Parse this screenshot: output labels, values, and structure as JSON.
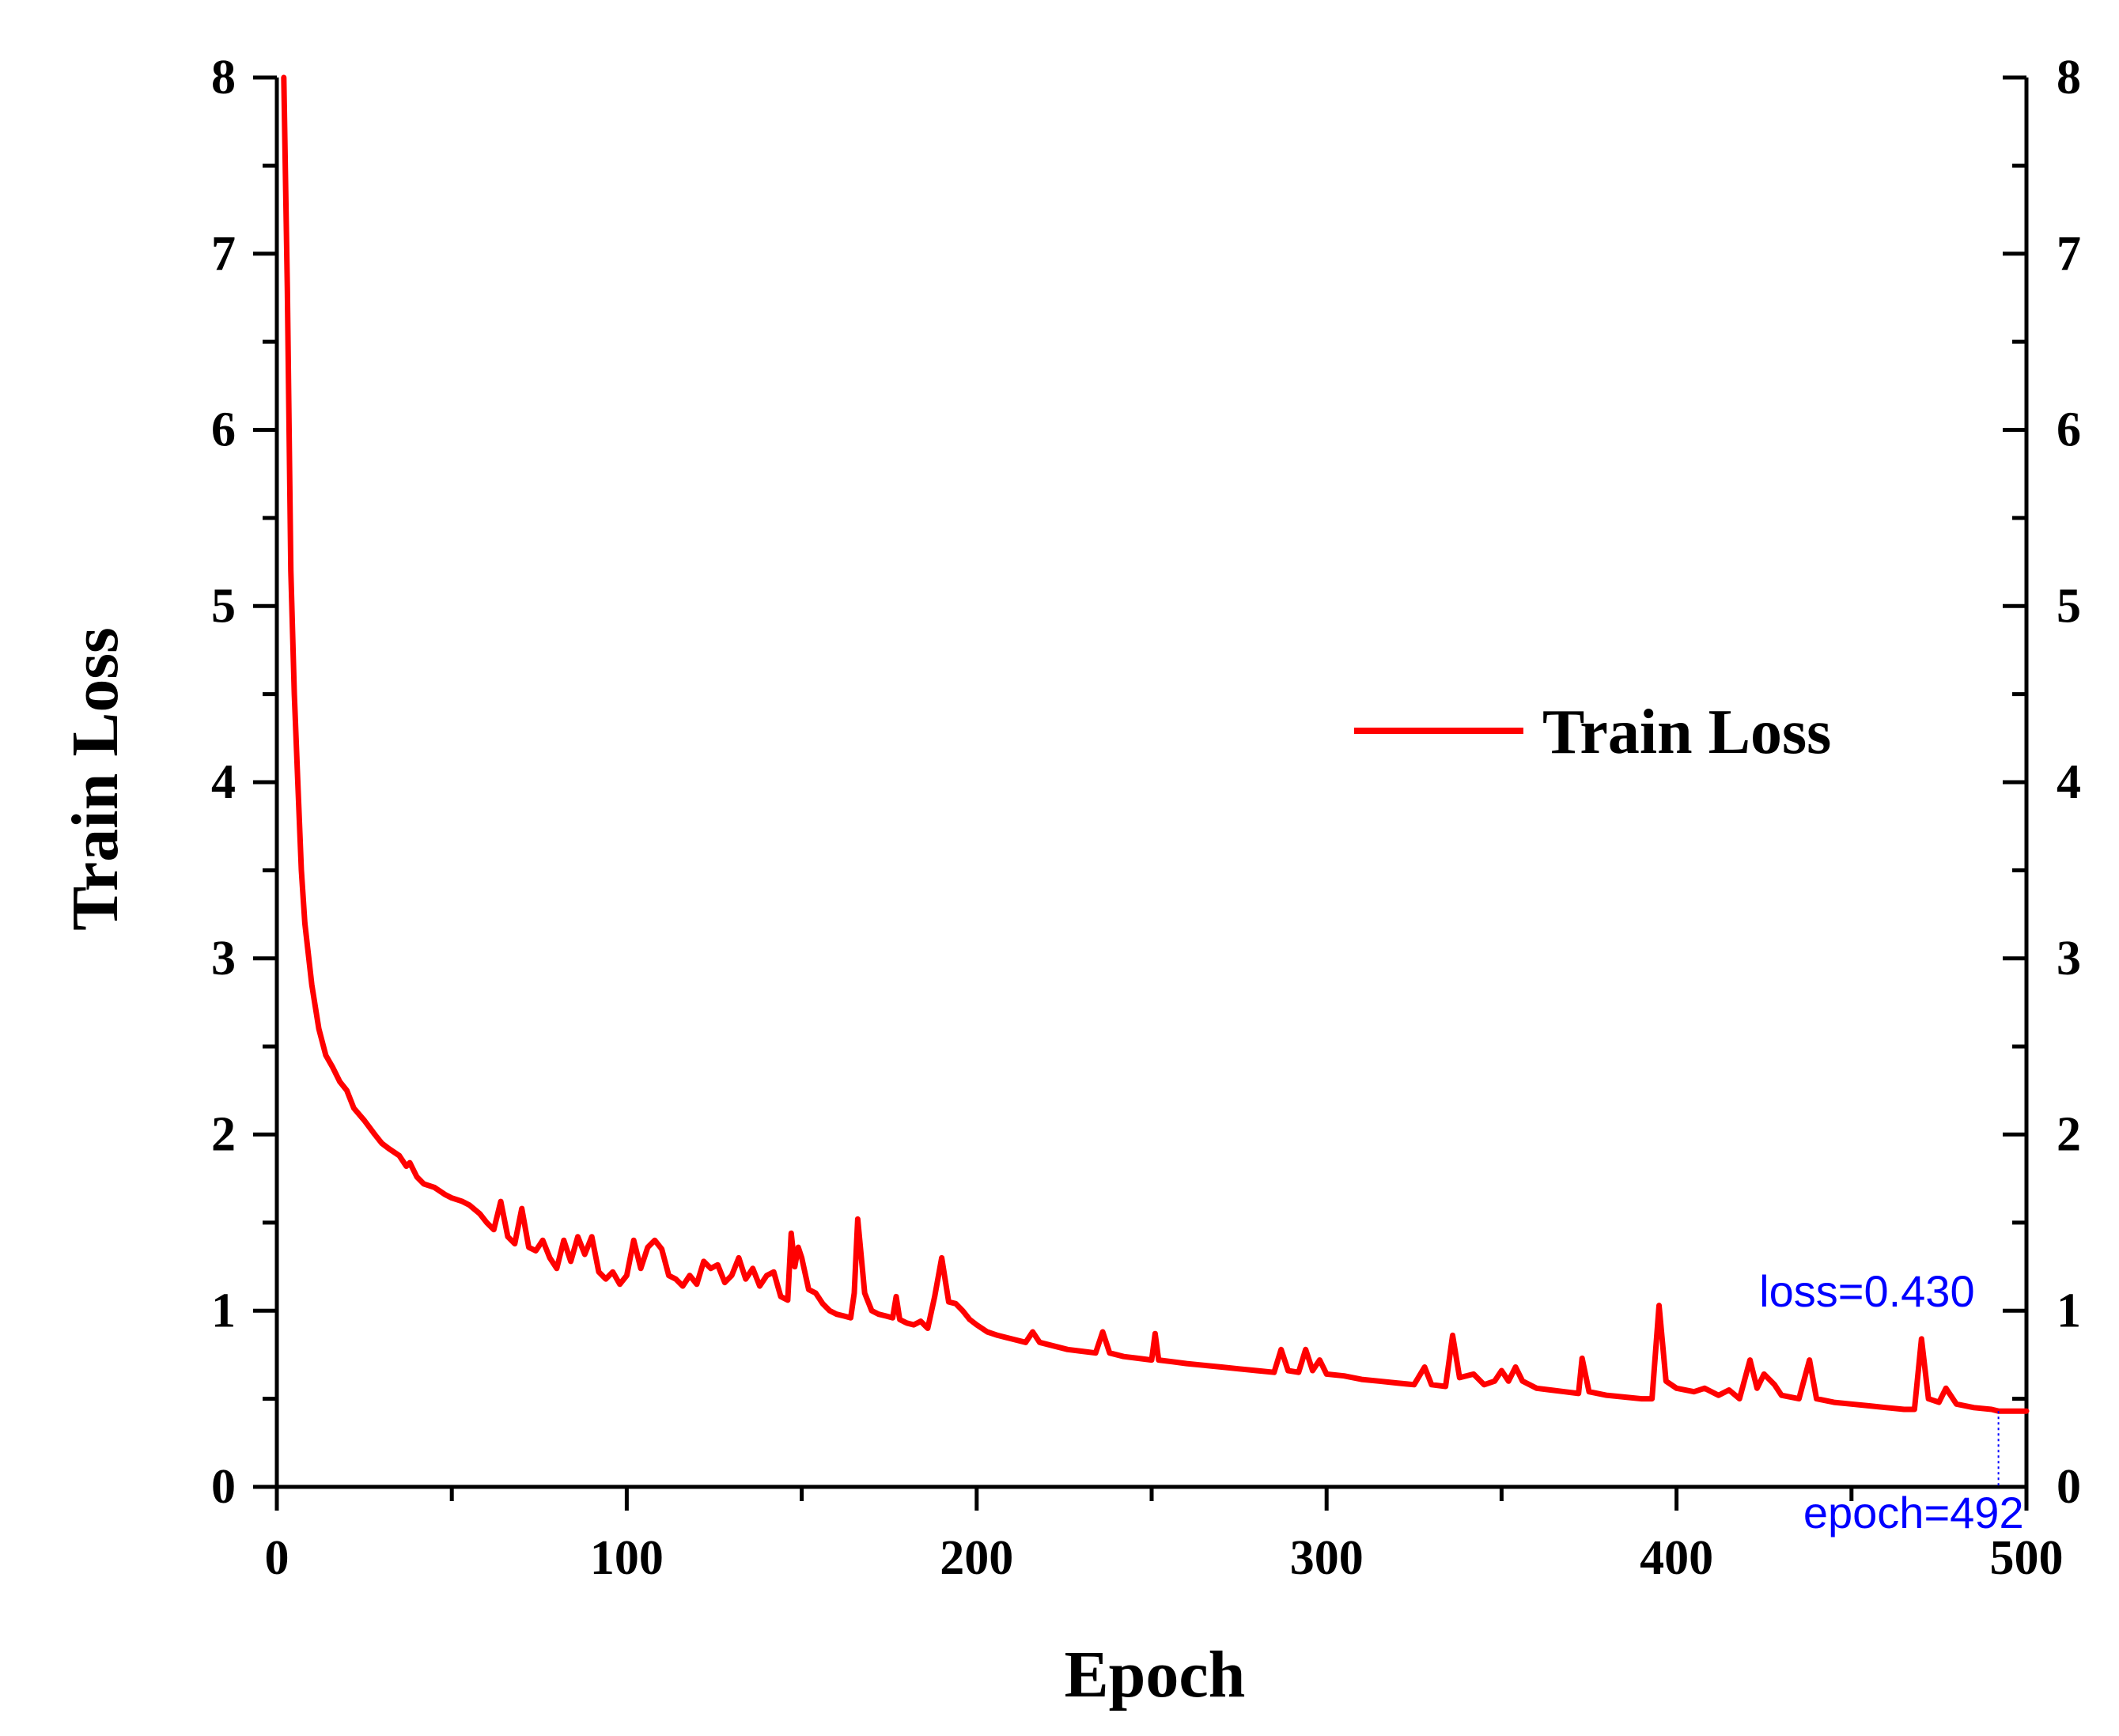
{
  "chart_data": {
    "type": "line",
    "title": "",
    "xlabel": "Epoch",
    "ylabel": "Train Loss",
    "xlim": [
      0,
      500
    ],
    "ylim": [
      0,
      8
    ],
    "x_ticks": [
      0,
      100,
      200,
      300,
      400,
      500
    ],
    "y_ticks": [
      0,
      1,
      2,
      3,
      4,
      5,
      6,
      7,
      8
    ],
    "x_tick_labels": [
      "0",
      "100",
      "200",
      "300",
      "400",
      "500"
    ],
    "y_tick_labels": [
      "0",
      "1",
      "2",
      "3",
      "4",
      "5",
      "6",
      "7",
      "8"
    ],
    "y2_tick_labels": [
      "0",
      "1",
      "2",
      "3",
      "4",
      "5",
      "6",
      "7",
      "8"
    ],
    "grid": false,
    "legend_position": "center-right",
    "colors": {
      "series": "#ff0000",
      "annotation": "#0000ff",
      "axis": "#000000"
    },
    "series": [
      {
        "name": "Train Loss",
        "points": [
          [
            2,
            8.0
          ],
          [
            3,
            6.8
          ],
          [
            4,
            5.2
          ],
          [
            5,
            4.5
          ],
          [
            6,
            4.0
          ],
          [
            7,
            3.5
          ],
          [
            8,
            3.2
          ],
          [
            10,
            2.85
          ],
          [
            12,
            2.6
          ],
          [
            14,
            2.45
          ],
          [
            16,
            2.38
          ],
          [
            18,
            2.3
          ],
          [
            20,
            2.25
          ],
          [
            22,
            2.15
          ],
          [
            25,
            2.08
          ],
          [
            28,
            2.0
          ],
          [
            30,
            1.95
          ],
          [
            32,
            1.92
          ],
          [
            35,
            1.88
          ],
          [
            37,
            1.82
          ],
          [
            38,
            1.84
          ],
          [
            40,
            1.76
          ],
          [
            42,
            1.72
          ],
          [
            45,
            1.7
          ],
          [
            48,
            1.66
          ],
          [
            50,
            1.64
          ],
          [
            53,
            1.62
          ],
          [
            55,
            1.6
          ],
          [
            58,
            1.55
          ],
          [
            60,
            1.5
          ],
          [
            62,
            1.46
          ],
          [
            64,
            1.62
          ],
          [
            66,
            1.42
          ],
          [
            68,
            1.38
          ],
          [
            70,
            1.58
          ],
          [
            72,
            1.36
          ],
          [
            74,
            1.34
          ],
          [
            76,
            1.4
          ],
          [
            78,
            1.3
          ],
          [
            80,
            1.24
          ],
          [
            82,
            1.4
          ],
          [
            84,
            1.28
          ],
          [
            86,
            1.42
          ],
          [
            88,
            1.32
          ],
          [
            90,
            1.42
          ],
          [
            92,
            1.22
          ],
          [
            94,
            1.18
          ],
          [
            96,
            1.22
          ],
          [
            98,
            1.15
          ],
          [
            100,
            1.2
          ],
          [
            102,
            1.4
          ],
          [
            104,
            1.24
          ],
          [
            106,
            1.36
          ],
          [
            108,
            1.4
          ],
          [
            110,
            1.35
          ],
          [
            112,
            1.2
          ],
          [
            114,
            1.18
          ],
          [
            116,
            1.14
          ],
          [
            118,
            1.2
          ],
          [
            120,
            1.15
          ],
          [
            122,
            1.28
          ],
          [
            124,
            1.24
          ],
          [
            126,
            1.26
          ],
          [
            128,
            1.16
          ],
          [
            130,
            1.2
          ],
          [
            132,
            1.3
          ],
          [
            134,
            1.18
          ],
          [
            136,
            1.24
          ],
          [
            138,
            1.14
          ],
          [
            140,
            1.2
          ],
          [
            142,
            1.22
          ],
          [
            144,
            1.08
          ],
          [
            146,
            1.06
          ],
          [
            147,
            1.44
          ],
          [
            148,
            1.25
          ],
          [
            149,
            1.36
          ],
          [
            150,
            1.3
          ],
          [
            152,
            1.12
          ],
          [
            154,
            1.1
          ],
          [
            156,
            1.04
          ],
          [
            158,
            1.0
          ],
          [
            160,
            0.98
          ],
          [
            162,
            0.97
          ],
          [
            164,
            0.96
          ],
          [
            165,
            1.1
          ],
          [
            166,
            1.52
          ],
          [
            168,
            1.1
          ],
          [
            170,
            1.0
          ],
          [
            172,
            0.98
          ],
          [
            174,
            0.97
          ],
          [
            176,
            0.96
          ],
          [
            177,
            1.08
          ],
          [
            178,
            0.95
          ],
          [
            180,
            0.93
          ],
          [
            182,
            0.92
          ],
          [
            184,
            0.94
          ],
          [
            186,
            0.9
          ],
          [
            188,
            1.08
          ],
          [
            190,
            1.3
          ],
          [
            192,
            1.05
          ],
          [
            194,
            1.04
          ],
          [
            196,
            1.0
          ],
          [
            198,
            0.95
          ],
          [
            200,
            0.92
          ],
          [
            203,
            0.88
          ],
          [
            206,
            0.86
          ],
          [
            210,
            0.84
          ],
          [
            214,
            0.82
          ],
          [
            216,
            0.88
          ],
          [
            218,
            0.82
          ],
          [
            222,
            0.8
          ],
          [
            226,
            0.78
          ],
          [
            230,
            0.77
          ],
          [
            234,
            0.76
          ],
          [
            236,
            0.88
          ],
          [
            238,
            0.76
          ],
          [
            242,
            0.74
          ],
          [
            246,
            0.73
          ],
          [
            250,
            0.72
          ],
          [
            251,
            0.87
          ],
          [
            252,
            0.72
          ],
          [
            256,
            0.71
          ],
          [
            260,
            0.7
          ],
          [
            265,
            0.69
          ],
          [
            270,
            0.68
          ],
          [
            275,
            0.67
          ],
          [
            280,
            0.66
          ],
          [
            285,
            0.65
          ],
          [
            287,
            0.78
          ],
          [
            289,
            0.66
          ],
          [
            292,
            0.65
          ],
          [
            294,
            0.78
          ],
          [
            296,
            0.66
          ],
          [
            298,
            0.72
          ],
          [
            300,
            0.64
          ],
          [
            305,
            0.63
          ],
          [
            310,
            0.61
          ],
          [
            315,
            0.6
          ],
          [
            320,
            0.59
          ],
          [
            325,
            0.58
          ],
          [
            328,
            0.68
          ],
          [
            330,
            0.58
          ],
          [
            334,
            0.57
          ],
          [
            336,
            0.86
          ],
          [
            338,
            0.62
          ],
          [
            342,
            0.64
          ],
          [
            345,
            0.58
          ],
          [
            348,
            0.6
          ],
          [
            350,
            0.66
          ],
          [
            352,
            0.6
          ],
          [
            354,
            0.68
          ],
          [
            356,
            0.6
          ],
          [
            360,
            0.56
          ],
          [
            364,
            0.55
          ],
          [
            368,
            0.54
          ],
          [
            372,
            0.53
          ],
          [
            373,
            0.73
          ],
          [
            375,
            0.54
          ],
          [
            380,
            0.52
          ],
          [
            385,
            0.51
          ],
          [
            390,
            0.5
          ],
          [
            393,
            0.5
          ],
          [
            395,
            1.03
          ],
          [
            397,
            0.6
          ],
          [
            400,
            0.56
          ],
          [
            405,
            0.54
          ],
          [
            408,
            0.56
          ],
          [
            412,
            0.52
          ],
          [
            415,
            0.55
          ],
          [
            418,
            0.5
          ],
          [
            421,
            0.72
          ],
          [
            423,
            0.56
          ],
          [
            425,
            0.64
          ],
          [
            428,
            0.58
          ],
          [
            430,
            0.52
          ],
          [
            435,
            0.5
          ],
          [
            438,
            0.72
          ],
          [
            440,
            0.5
          ],
          [
            445,
            0.48
          ],
          [
            450,
            0.47
          ],
          [
            455,
            0.46
          ],
          [
            460,
            0.45
          ],
          [
            465,
            0.44
          ],
          [
            468,
            0.44
          ],
          [
            470,
            0.84
          ],
          [
            472,
            0.5
          ],
          [
            475,
            0.48
          ],
          [
            477,
            0.56
          ],
          [
            480,
            0.47
          ],
          [
            485,
            0.45
          ],
          [
            490,
            0.44
          ],
          [
            492,
            0.43
          ],
          [
            496,
            0.43
          ],
          [
            500,
            0.43
          ]
        ]
      }
    ],
    "legend": [
      "Train Loss"
    ],
    "annotations": {
      "loss_label": "loss=0.430",
      "epoch_label": "epoch=492",
      "marker_epoch": 492,
      "marker_loss": 0.43
    }
  }
}
